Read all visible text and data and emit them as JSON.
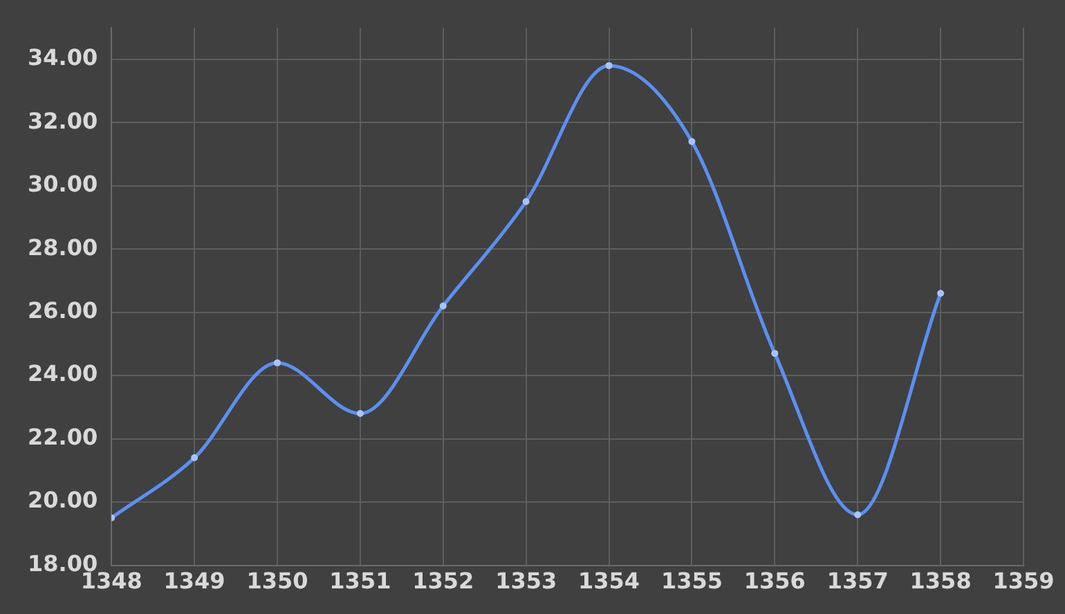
{
  "chart_data": {
    "type": "line",
    "x": [
      1348,
      1349,
      1350,
      1351,
      1352,
      1353,
      1354,
      1355,
      1356,
      1357,
      1358
    ],
    "series": [
      {
        "color": "#5b8ff0",
        "values": [
          19.5,
          21.4,
          24.4,
          22.8,
          26.2,
          29.5,
          33.8,
          31.4,
          24.7,
          19.6,
          26.6
        ]
      }
    ],
    "xlim": [
      1348,
      1359
    ],
    "xticks": [
      1348,
      1349,
      1350,
      1351,
      1352,
      1353,
      1354,
      1355,
      1356,
      1357,
      1358,
      1359
    ],
    "ylim": [
      18,
      35
    ],
    "yticks": [
      {
        "value": 18,
        "label": "18.00"
      },
      {
        "value": 20,
        "label": "20.00"
      },
      {
        "value": 22,
        "label": "22.00"
      },
      {
        "value": 24,
        "label": "24.00"
      },
      {
        "value": 26,
        "label": "26.00"
      },
      {
        "value": 28,
        "label": "28.00"
      },
      {
        "value": 30,
        "label": "30.00"
      },
      {
        "value": 32,
        "label": "32.00"
      },
      {
        "value": 34,
        "label": "34.00"
      }
    ],
    "grid": true,
    "legend": false,
    "marker": "circle",
    "line_style": "solid"
  }
}
